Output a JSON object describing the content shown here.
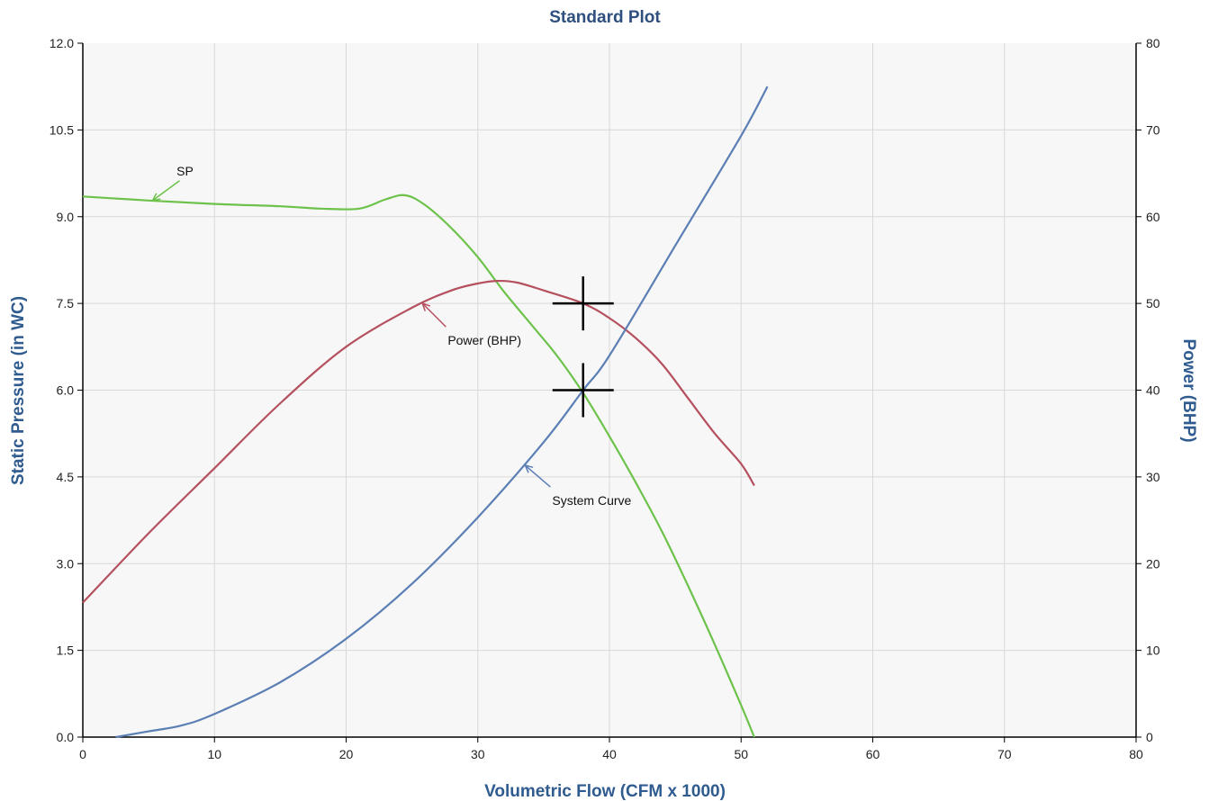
{
  "chart_data": {
    "type": "line",
    "title": "Standard Plot",
    "xlabel": "Volumetric Flow (CFM x 1000)",
    "ylabel_left": "Static Pressure (in WC)",
    "ylabel_right": "Power (BHP)",
    "xlim": [
      0,
      80
    ],
    "ylim_left": [
      0,
      12
    ],
    "ylim_right": [
      0,
      80
    ],
    "x_ticks": [
      "0",
      "10",
      "20",
      "30",
      "40",
      "50",
      "60",
      "70",
      "80"
    ],
    "y_left_ticks": [
      "0.0",
      "1.5",
      "3.0",
      "4.5",
      "6.0",
      "7.5",
      "9.0",
      "10.5",
      "12.0"
    ],
    "y_right_ticks": [
      "0",
      "10",
      "20",
      "30",
      "40",
      "50",
      "60",
      "70",
      "80"
    ],
    "grid": true,
    "colors": {
      "sp": "#6cc24a",
      "power": "#b5505f",
      "system": "#5b7fb5",
      "plot_bg": "#f7f7f7",
      "grid": "#d8d8d8",
      "marker": "#000000"
    },
    "series": [
      {
        "name": "SP",
        "axis": "left",
        "x": [
          0,
          5,
          10,
          15,
          18,
          21,
          23,
          24.5,
          26,
          28,
          30,
          32,
          34,
          36,
          38,
          40,
          42,
          44,
          46,
          48,
          50,
          51
        ],
        "y": [
          9.35,
          9.28,
          9.22,
          9.18,
          9.14,
          9.14,
          9.3,
          9.37,
          9.2,
          8.8,
          8.3,
          7.7,
          7.15,
          6.6,
          5.95,
          5.2,
          4.4,
          3.55,
          2.6,
          1.6,
          0.55,
          0.0
        ]
      },
      {
        "name": "Power (BHP)",
        "axis": "right",
        "x": [
          0,
          5,
          10,
          15,
          20,
          25,
          28,
          30,
          31.5,
          33,
          35,
          38,
          40,
          42,
          44,
          46,
          48,
          50,
          51
        ],
        "y": [
          15.5,
          23.5,
          31,
          38.5,
          45,
          49.5,
          51.5,
          52.3,
          52.6,
          52.4,
          51.5,
          50,
          48.3,
          46,
          43,
          39,
          35,
          31.5,
          29
        ]
      },
      {
        "name": "System Curve",
        "axis": "left",
        "x": [
          2.5,
          5,
          7.5,
          10,
          15,
          20,
          25,
          30,
          35,
          38,
          40,
          45,
          50,
          52
        ],
        "y": [
          0.0,
          0.1,
          0.2,
          0.4,
          0.95,
          1.7,
          2.65,
          3.8,
          5.1,
          6.0,
          6.6,
          8.5,
          10.4,
          11.25
        ]
      }
    ],
    "annotations": [
      {
        "text": "SP",
        "target_x": 5.3,
        "target_y": 9.28,
        "axis": "left"
      },
      {
        "text": "Power (BHP)",
        "target_x": 25.8,
        "target_y": 50,
        "axis": "right"
      },
      {
        "text": "System Curve",
        "target_x": 33.6,
        "target_y": 4.7,
        "axis": "left"
      }
    ],
    "operating_points": [
      {
        "x": 38,
        "y": 50,
        "axis": "right"
      },
      {
        "x": 38,
        "y": 6.0,
        "axis": "left"
      }
    ]
  }
}
